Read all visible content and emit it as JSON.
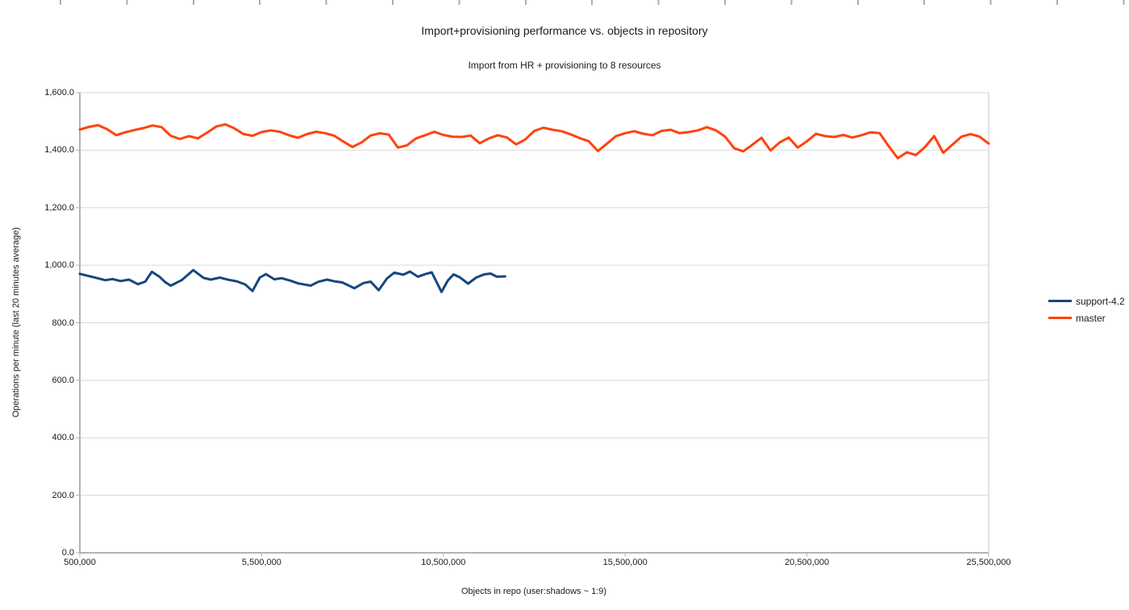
{
  "chart_data": {
    "type": "line",
    "title": "Import+provisioning performance vs. objects in repository",
    "subtitle": "Import from HR + provisioning to 8 resources",
    "xlabel": "Objects in repo (user:shadows ~ 1:9)",
    "ylabel": "Operations per minute (last 20 minutes average)",
    "x_unit": "objects in repository (x values stored in millions)",
    "xlim": [
      500000,
      25500000
    ],
    "ylim": [
      0,
      1600
    ],
    "grid": "horizontal gridlines only",
    "legend_position": "right",
    "x_tick_values": [
      500000,
      5500000,
      10500000,
      15500000,
      20500000,
      25500000
    ],
    "x_tick_labels": [
      "500,000",
      "5,500,000",
      "10,500,000",
      "15,500,000",
      "20,500,000",
      "25,500,000"
    ],
    "y_tick_values": [
      0,
      200,
      400,
      600,
      800,
      1000,
      1200,
      1400,
      1600
    ],
    "y_tick_labels": [
      "0.0",
      "200.0",
      "400.0",
      "600.0",
      "800.0",
      "1,000.0",
      "1,200.0",
      "1,400.0",
      "1,600.0"
    ],
    "colors": {
      "background": "#ffffff",
      "grid": "#d9d9d9",
      "axis": "#b3b3b3",
      "border": "#c6c6c6",
      "text": "#1a1a1a"
    },
    "series": [
      {
        "name": "support-4.2",
        "color": "#17477e",
        "points_x_millions": [
          0.5,
          0.72,
          0.95,
          1.2,
          1.4,
          1.62,
          1.85,
          2.1,
          2.3,
          2.48,
          2.7,
          2.85,
          3.0,
          3.3,
          3.62,
          3.9,
          4.1,
          4.35,
          4.6,
          4.82,
          5.05,
          5.25,
          5.45,
          5.62,
          5.85,
          6.05,
          6.3,
          6.5,
          6.85,
          7.05,
          7.3,
          7.5,
          7.72,
          8.05,
          8.3,
          8.5,
          8.72,
          8.95,
          9.15,
          9.4,
          9.58,
          9.8,
          10.0,
          10.18,
          10.45,
          10.62,
          10.78,
          10.95,
          11.18,
          11.4,
          11.62,
          11.8,
          11.97,
          12.2
        ],
        "values": [
          970,
          963,
          956,
          948,
          952,
          945,
          950,
          934,
          943,
          977,
          959,
          941,
          929,
          948,
          983,
          956,
          950,
          957,
          949,
          944,
          933,
          910,
          957,
          969,
          951,
          955,
          946,
          937,
          929,
          942,
          950,
          944,
          940,
          920,
          938,
          943,
          913,
          954,
          974,
          967,
          978,
          960,
          969,
          975,
          907,
          946,
          968,
          958,
          936,
          957,
          968,
          971,
          960,
          961
        ]
      },
      {
        "name": "master",
        "color": "#ff420e",
        "points_x_millions": [
          0.5,
          0.75,
          1.0,
          1.25,
          1.5,
          1.75,
          2.0,
          2.25,
          2.5,
          2.75,
          3.0,
          3.25,
          3.5,
          3.75,
          4.0,
          4.25,
          4.5,
          4.75,
          5.0,
          5.25,
          5.5,
          5.75,
          6.0,
          6.25,
          6.5,
          6.75,
          7.0,
          7.25,
          7.5,
          7.75,
          8.0,
          8.25,
          8.5,
          8.75,
          9.0,
          9.25,
          9.5,
          9.75,
          10.0,
          10.25,
          10.5,
          10.75,
          11.0,
          11.25,
          11.5,
          11.75,
          12.0,
          12.25,
          12.5,
          12.75,
          13.0,
          13.25,
          13.5,
          13.75,
          14.0,
          14.25,
          14.5,
          14.75,
          15.0,
          15.25,
          15.5,
          15.75,
          16.0,
          16.25,
          16.5,
          16.75,
          17.0,
          17.25,
          17.5,
          17.75,
          18.0,
          18.25,
          18.5,
          18.75,
          19.0,
          19.25,
          19.5,
          19.75,
          20.0,
          20.25,
          20.5,
          20.75,
          21.0,
          21.25,
          21.5,
          21.75,
          22.0,
          22.25,
          22.5,
          22.75,
          23.0,
          23.25,
          23.5,
          23.75,
          24.0,
          24.25,
          24.5,
          24.75,
          25.0,
          25.25,
          25.5
        ],
        "values": [
          1472,
          1481,
          1487,
          1473,
          1452,
          1462,
          1470,
          1477,
          1486,
          1480,
          1450,
          1439,
          1449,
          1441,
          1461,
          1482,
          1490,
          1476,
          1456,
          1450,
          1463,
          1469,
          1464,
          1452,
          1443,
          1456,
          1464,
          1459,
          1450,
          1430,
          1411,
          1427,
          1451,
          1459,
          1454,
          1409,
          1417,
          1441,
          1452,
          1464,
          1453,
          1447,
          1446,
          1451,
          1424,
          1441,
          1452,
          1444,
          1420,
          1437,
          1467,
          1478,
          1471,
          1466,
          1455,
          1442,
          1431,
          1397,
          1423,
          1449,
          1459,
          1466,
          1457,
          1452,
          1467,
          1471,
          1459,
          1463,
          1469,
          1480,
          1469,
          1447,
          1407,
          1396,
          1419,
          1443,
          1399,
          1427,
          1444,
          1409,
          1431,
          1457,
          1449,
          1446,
          1453,
          1444,
          1452,
          1462,
          1459,
          1414,
          1372,
          1393,
          1383,
          1411,
          1449,
          1391,
          1419,
          1447,
          1456,
          1447,
          1423
        ]
      }
    ]
  }
}
